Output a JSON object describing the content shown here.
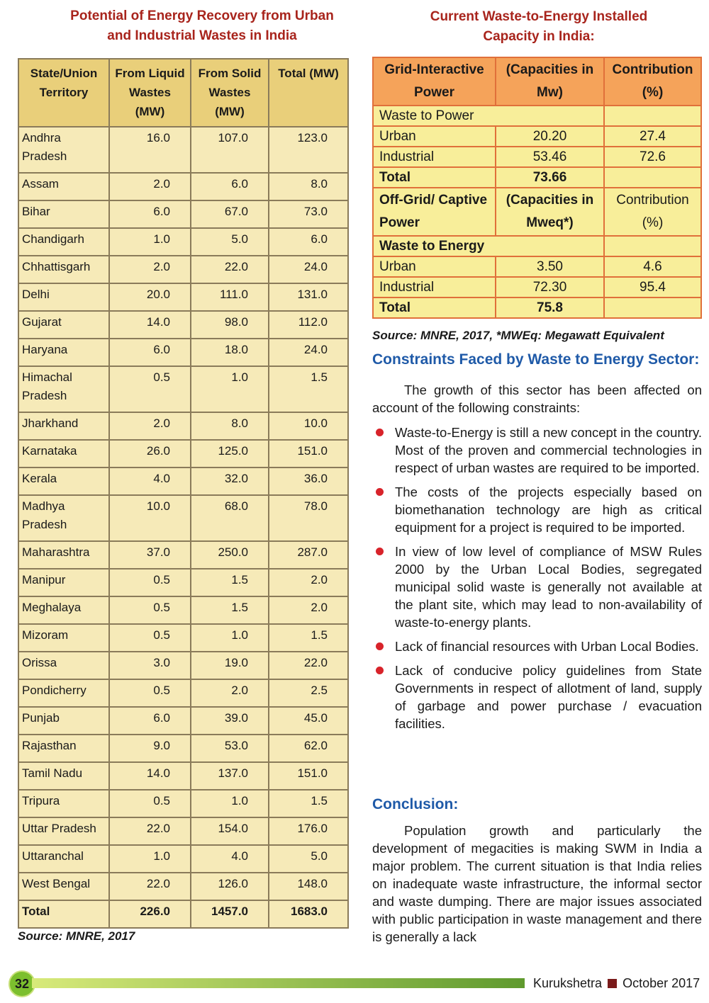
{
  "left": {
    "title": [
      "Potential of Energy Recovery from Urban",
      "and Industrial Wastes in India"
    ],
    "headers": [
      "State/Union Territory",
      "From Liquid Wastes (MW)",
      "From Solid Wastes (MW)",
      "Total (MW)"
    ],
    "rows": [
      [
        "Andhra Pradesh",
        "16.0",
        "107.0",
        "123.0"
      ],
      [
        "Assam",
        "2.0",
        "6.0",
        "8.0"
      ],
      [
        "Bihar",
        "6.0",
        "67.0",
        "73.0"
      ],
      [
        "Chandigarh",
        "1.0",
        "5.0",
        "6.0"
      ],
      [
        "Chhattisgarh",
        "2.0",
        "22.0",
        "24.0"
      ],
      [
        "Delhi",
        "20.0",
        "111.0",
        "131.0"
      ],
      [
        "Gujarat",
        "14.0",
        "98.0",
        "112.0"
      ],
      [
        "Haryana",
        "6.0",
        "18.0",
        "24.0"
      ],
      [
        "Himachal Pradesh",
        "0.5",
        "1.0",
        "1.5"
      ],
      [
        "Jharkhand",
        "2.0",
        "8.0",
        "10.0"
      ],
      [
        "Karnataka",
        "26.0",
        "125.0",
        "151.0"
      ],
      [
        "Kerala",
        "4.0",
        "32.0",
        "36.0"
      ],
      [
        "Madhya Pradesh",
        "10.0",
        "68.0",
        "78.0"
      ],
      [
        "Maharashtra",
        "37.0",
        "250.0",
        "287.0"
      ],
      [
        "Manipur",
        "0.5",
        "1.5",
        "2.0"
      ],
      [
        "Meghalaya",
        "0.5",
        "1.5",
        "2.0"
      ],
      [
        "Mizoram",
        "0.5",
        "1.0",
        "1.5"
      ],
      [
        "Orissa",
        "3.0",
        "19.0",
        "22.0"
      ],
      [
        "Pondicherry",
        "0.5",
        "2.0",
        "2.5"
      ],
      [
        "Punjab",
        "6.0",
        "39.0",
        "45.0"
      ],
      [
        "Rajasthan",
        "9.0",
        "53.0",
        "62.0"
      ],
      [
        "Tamil Nadu",
        "14.0",
        "137.0",
        "151.0"
      ],
      [
        "Tripura",
        "0.5",
        "1.0",
        "1.5"
      ],
      [
        "Uttar Pradesh",
        "22.0",
        "154.0",
        "176.0"
      ],
      [
        "Uttaranchal",
        "1.0",
        "4.0",
        "5.0"
      ],
      [
        "West Bengal",
        "22.0",
        "126.0",
        "148.0"
      ],
      [
        "Total",
        "226.0",
        "1457.0",
        "1683.0"
      ]
    ],
    "source": "Source: MNRE, 2017"
  },
  "right": {
    "title": [
      "Current Waste-to-Energy Installed",
      "Capacity in India:"
    ],
    "header": [
      "Grid-Interactive Power",
      "(Capacities in Mw)",
      "Contribution (%)"
    ],
    "section1": "Waste to Power",
    "rows1": [
      [
        "Urban",
        "20.20",
        "27.4"
      ],
      [
        "Industrial",
        "53.46",
        "72.6"
      ],
      [
        "Total",
        "73.66",
        ""
      ]
    ],
    "header2": [
      "Off-Grid/ Captive Power",
      "(Capacities in Mweq*)",
      "Contribution (%)"
    ],
    "section2": "Waste to Energy",
    "rows2": [
      [
        "Urban",
        "3.50",
        "4.6"
      ],
      [
        "Industrial",
        "72.30",
        "95.4"
      ],
      [
        "Total",
        "75.8",
        ""
      ]
    ],
    "source": "Source: MNRE, 2017, *MWEq: Megawatt Equivalent",
    "h_constraints": "Constraints Faced by Waste to Energy Sector:",
    "intro": "The growth of this sector has been affected on account of the following constraints:",
    "bullets": [
      "Waste-to-Energy is still a new concept in the country. Most of the proven and commercial technologies in respect of urban wastes are required to be imported.",
      "The costs of the projects especially based on biomethanation technology are high as critical equipment for a project is required to be imported.",
      "In view of low level of compliance of MSW Rules 2000 by the Urban Local Bodies, segregated municipal solid waste is generally not available at the plant site, which may lead to non-availability of waste-to-energy plants.",
      "Lack of financial resources with Urban Local Bodies.",
      "Lack of conducive policy guidelines from State Governments in respect of allotment of land, supply of garbage and power purchase / evacuation facilities."
    ],
    "h_conclusion": "Conclusion:",
    "conclusion": "Population growth and particularly the development of megacities is making SWM in India a major problem. The current situation is that India relies on inadequate waste infrastructure, the informal sector and waste dumping. There are major issues associated with public participation in waste management and there is generally a lack"
  },
  "footer": {
    "page": "32",
    "magazine": "Kurukshetra",
    "date": "October 2017"
  }
}
